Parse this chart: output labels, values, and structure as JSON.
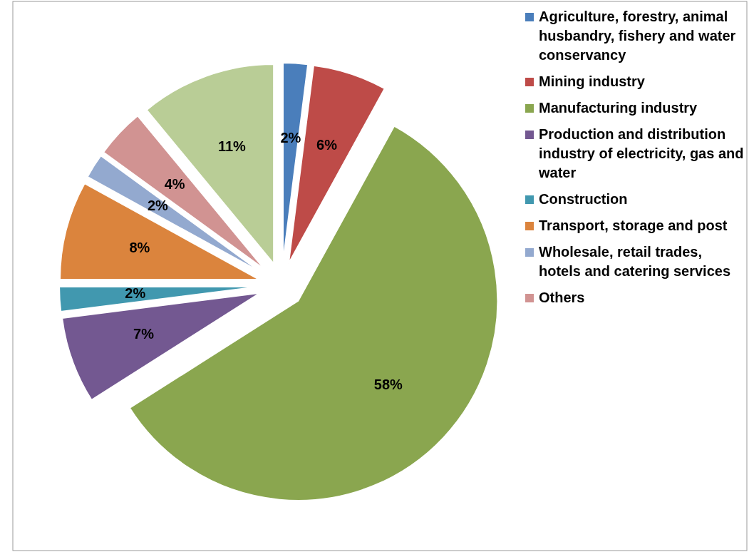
{
  "chart_data": {
    "type": "pie",
    "categories": [
      "Agriculture, forestry, animal husbandry, fishery and water conservancy",
      "Mining industry",
      "Manufacturing industry",
      "Production and distribution industry of electricity, gas and water",
      "Construction",
      "Transport, storage and post",
      "Wholesale, retail trades, hotels and catering services",
      "Others",
      null
    ],
    "values": [
      2,
      6,
      58,
      7,
      2,
      8,
      2,
      4,
      11
    ],
    "colors": [
      "#4a7ebb",
      "#be4b48",
      "#8aa64f",
      "#735891",
      "#4198af",
      "#db843d",
      "#93a9cf",
      "#d19392",
      "#b9cd96"
    ],
    "value_labels": [
      "2%",
      "6%",
      "58%",
      "7%",
      "2%",
      "8%",
      "2%",
      "4%",
      "11%"
    ],
    "legend": "right"
  }
}
